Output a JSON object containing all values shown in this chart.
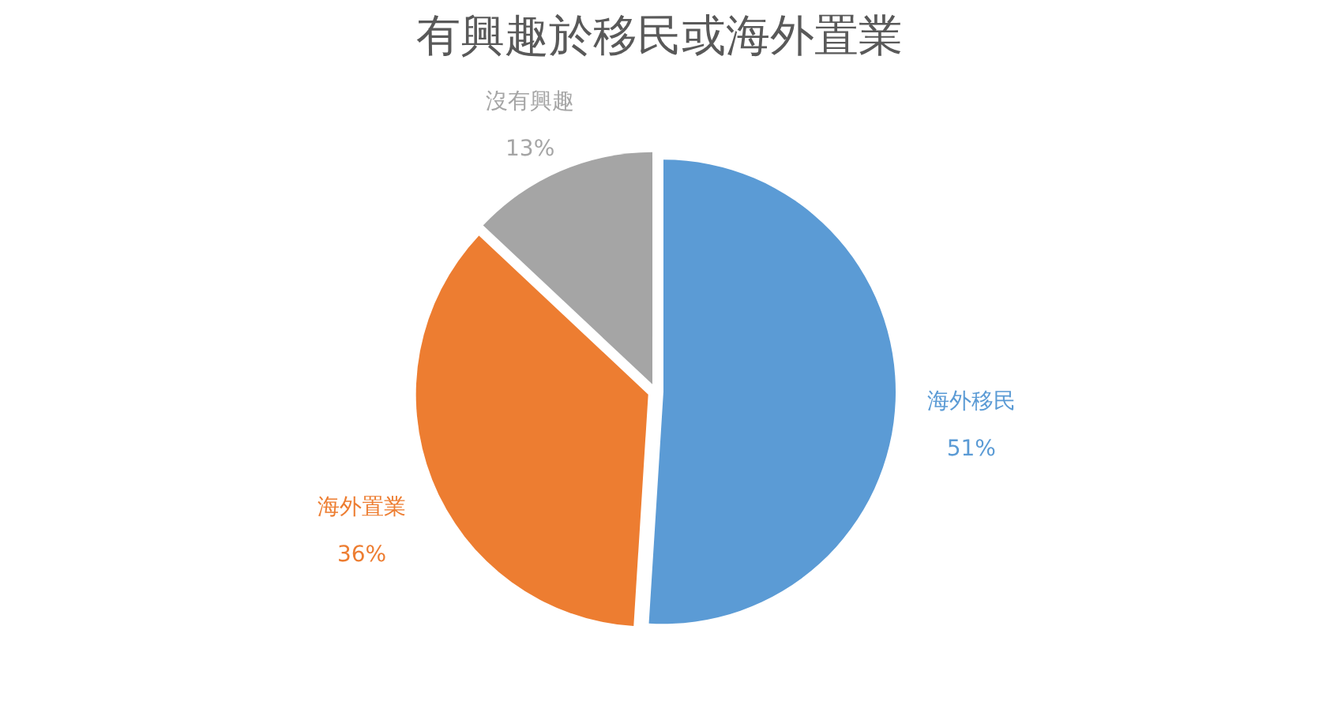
{
  "chart_data": {
    "type": "pie",
    "title": "有興趣於移民或海外置業",
    "categories": [
      "海外移民",
      "海外置業",
      "沒有興趣"
    ],
    "values": [
      51,
      36,
      13
    ],
    "colors": [
      "#5b9bd5",
      "#ed7d31",
      "#a5a5a5"
    ],
    "value_labels": [
      "51%",
      "36%",
      "13%"
    ]
  }
}
